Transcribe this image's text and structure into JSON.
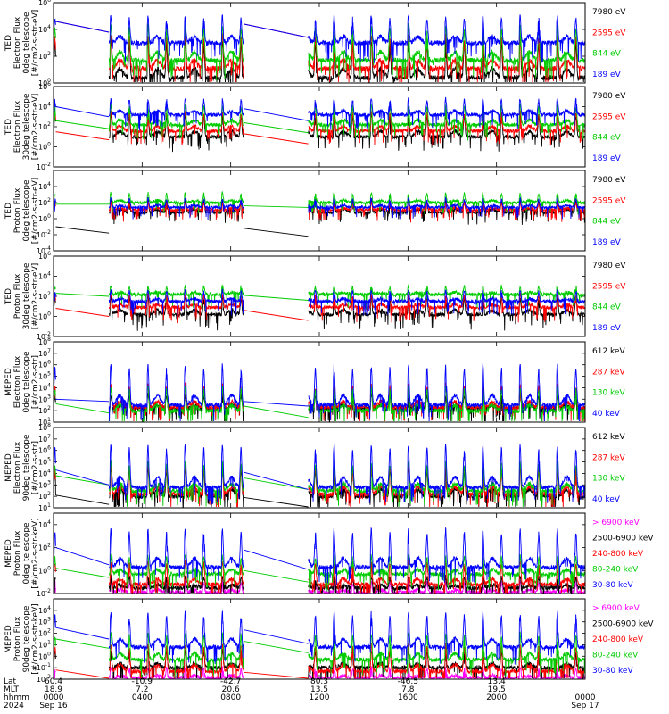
{
  "chart_data": [
    {
      "type": "line",
      "ylabel": [
        "TED",
        "Electron Flux",
        "0deg telescope",
        "[#/cm2-s-str-eV]"
      ],
      "yscale": "log",
      "ylim_exp": [
        0,
        6
      ],
      "ytick_exps": [
        0,
        2,
        4,
        6
      ],
      "ytick_labels": [
        "10^0",
        "10^2",
        "10^4",
        "10^6"
      ],
      "series": [
        {
          "name": "7980 eV",
          "color": "#000000",
          "base_exp": 0.4,
          "peak_exp": 3.2
        },
        {
          "name": "2595 eV",
          "color": "#ff0000",
          "base_exp": 1.1,
          "peak_exp": 3.6
        },
        {
          "name": "844 eV",
          "color": "#00cc00",
          "base_exp": 1.7,
          "peak_exp": 4.3
        },
        {
          "name": "189 eV",
          "color": "#0000ff",
          "base_exp": 3.0,
          "peak_exp": 5.0
        }
      ],
      "gap_line_start_exp": {
        "189 eV": 4.6,
        "2595 eV": 4.6
      },
      "gap_mid_exp": {
        "189 eV": 3.8
      }
    },
    {
      "type": "line",
      "ylabel": [
        "TED",
        "Electron Flux",
        "30deg telescope",
        "[#/cm2-s-str-eV]"
      ],
      "yscale": "log",
      "ylim_exp": [
        -2,
        6
      ],
      "ytick_exps": [
        -2,
        0,
        2,
        4,
        6
      ],
      "ytick_labels": [
        "10^-2",
        "10^0",
        "10^2",
        "10^4",
        "10^6"
      ],
      "series": [
        {
          "name": "7980 eV",
          "color": "#000000",
          "base_exp": 1.0,
          "peak_exp": 3.3
        },
        {
          "name": "2595 eV",
          "color": "#ff0000",
          "base_exp": 1.6,
          "peak_exp": 3.5
        },
        {
          "name": "844 eV",
          "color": "#00cc00",
          "base_exp": 2.2,
          "peak_exp": 4.2
        },
        {
          "name": "189 eV",
          "color": "#0000ff",
          "base_exp": 3.2,
          "peak_exp": 4.8
        }
      ],
      "gap_line_start_exp": {
        "189 eV": 4.0,
        "844 eV": 2.6,
        "2595 eV": 1.5
      },
      "gap_mid_exp": {
        "189 eV": 3.0
      }
    },
    {
      "type": "line",
      "ylabel": [
        "TED",
        "Proton Flux",
        "0deg telescope",
        "[#/cm2-s-str-eV]"
      ],
      "yscale": "log",
      "ylim_exp": [
        -4,
        6
      ],
      "ytick_exps": [
        -4,
        -2,
        0,
        2,
        4
      ],
      "ytick_labels": [
        "10^-4",
        "10^-2",
        "10^0",
        "10^2",
        "10^4"
      ],
      "series": [
        {
          "name": "7980 eV",
          "color": "#000000",
          "base_exp": 0.8,
          "peak_exp": 2.3
        },
        {
          "name": "2595 eV",
          "color": "#ff0000",
          "base_exp": 1.1,
          "peak_exp": 2.0
        },
        {
          "name": "844 eV",
          "color": "#00cc00",
          "base_exp": 2.0,
          "peak_exp": 3.2
        },
        {
          "name": "189 eV",
          "color": "#0000ff",
          "base_exp": 1.4,
          "peak_exp": 2.5
        }
      ],
      "gap_line_start_exp": {
        "844 eV": 1.8,
        "7980 eV": -1.0
      },
      "gap_mid_exp": {
        "844 eV": 1.8
      }
    },
    {
      "type": "line",
      "ylabel": [
        "TED",
        "Proton Flux",
        "30deg telescope",
        "[#/cm2-s-str-eV]"
      ],
      "yscale": "log",
      "ylim_exp": [
        -2,
        6
      ],
      "ytick_exps": [
        -2,
        0,
        2,
        4,
        6
      ],
      "ytick_labels": [
        "10^-2",
        "10^0",
        "10^2",
        "10^4",
        "10^6"
      ],
      "series": [
        {
          "name": "7980 eV",
          "color": "#000000",
          "base_exp": 0.2,
          "peak_exp": 2.0
        },
        {
          "name": "2595 eV",
          "color": "#ff0000",
          "base_exp": 0.9,
          "peak_exp": 2.2
        },
        {
          "name": "844 eV",
          "color": "#00cc00",
          "base_exp": 2.2,
          "peak_exp": 3.0
        },
        {
          "name": "189 eV",
          "color": "#0000ff",
          "base_exp": 1.5,
          "peak_exp": 2.6
        }
      ],
      "gap_line_start_exp": {
        "844 eV": 2.3,
        "2595 eV": 0.8
      },
      "gap_mid_exp": {
        "844 eV": 2.0
      }
    },
    {
      "type": "line",
      "ylabel": [
        "MEPED",
        "Electron Flux",
        "0deg telescope",
        "[#/cm2-s-str]"
      ],
      "yscale": "log",
      "ylim_exp": [
        1,
        8
      ],
      "ytick_exps": [
        1,
        2,
        3,
        4,
        5,
        6,
        7,
        8
      ],
      "ytick_labels": [
        "10^1",
        "10^2",
        "10^3",
        "10^4",
        "10^5",
        "10^6",
        "10^7",
        "10^8"
      ],
      "series": [
        {
          "name": "612 keV",
          "color": "#000000",
          "base_exp": 2.2,
          "peak_exp": 3.4
        },
        {
          "name": "287 keV",
          "color": "#ff0000",
          "base_exp": 2.3,
          "peak_exp": 4.3
        },
        {
          "name": "130 keV",
          "color": "#00cc00",
          "base_exp": 2.0,
          "peak_exp": 4.0
        },
        {
          "name": "40 keV",
          "color": "#0000ff",
          "base_exp": 2.5,
          "peak_exp": 6.0
        }
      ],
      "gap_line_start_exp": {
        "40 keV": 3.0,
        "130 keV": 2.6
      },
      "gap_mid_exp": {
        "40 keV": 2.8
      }
    },
    {
      "type": "line",
      "ylabel": [
        "MEPED",
        "Electron Flux",
        "90deg telescope",
        "[#/cm2-s-str]"
      ],
      "yscale": "log",
      "ylim_exp": [
        1,
        8
      ],
      "ytick_exps": [
        1,
        2,
        3,
        4,
        5,
        6,
        7,
        8
      ],
      "ytick_labels": [
        "10^1",
        "10^2",
        "10^3",
        "10^4",
        "10^5",
        "10^6",
        "10^7",
        "10^8"
      ],
      "series": [
        {
          "name": "612 keV",
          "color": "#000000",
          "base_exp": 2.0,
          "peak_exp": 4.5
        },
        {
          "name": "287 keV",
          "color": "#ff0000",
          "base_exp": 2.2,
          "peak_exp": 4.8
        },
        {
          "name": "130 keV",
          "color": "#00cc00",
          "base_exp": 2.5,
          "peak_exp": 5.0
        },
        {
          "name": "40 keV",
          "color": "#0000ff",
          "base_exp": 2.8,
          "peak_exp": 6.5
        }
      ],
      "gap_line_start_exp": {
        "40 keV": 4.3,
        "130 keV": 3.8,
        "612 keV": 2.1
      },
      "gap_mid_exp": {
        "40 keV": 3.0
      }
    },
    {
      "type": "line",
      "ylabel": [
        "MEPED",
        "Proton Flux",
        "0deg telescope",
        "[#/cm2-s-str-keV]"
      ],
      "yscale": "log",
      "ylim_exp": [
        -2,
        5
      ],
      "ytick_exps": [
        -2,
        0,
        2,
        4
      ],
      "ytick_labels": [
        "10^-2",
        "10^0",
        "10^2",
        "10^4"
      ],
      "series": [
        {
          "name": "> 6900 keV",
          "color": "#ff00ff",
          "base_exp": -1.9,
          "peak_exp": -1.0
        },
        {
          "name": "2500-6900 keV",
          "color": "#000000",
          "base_exp": -1.5,
          "peak_exp": -0.5
        },
        {
          "name": "240-800 keV",
          "color": "#ff0000",
          "base_exp": -1.2,
          "peak_exp": 0.8
        },
        {
          "name": "80-240 keV",
          "color": "#00cc00",
          "base_exp": -0.3,
          "peak_exp": 1.3
        },
        {
          "name": "30-80 keV",
          "color": "#0000ff",
          "base_exp": 0.3,
          "peak_exp": 3.6
        }
      ],
      "gap_line_start_exp": {
        "30-80 keV": 2.0,
        "80-240 keV": 0.2
      },
      "gap_mid_exp": {
        "30-80 keV": 0.5
      }
    },
    {
      "type": "line",
      "ylabel": [
        "MEPED",
        "Proton Flux",
        "90deg telescope",
        "[#/cm2-s-str-keV]"
      ],
      "yscale": "log",
      "ylim_exp": [
        -2,
        5
      ],
      "ytick_exps": [
        -2,
        -1,
        0,
        1,
        2,
        3,
        4
      ],
      "ytick_labels": [
        "10^-2",
        "10^-1",
        "10^0",
        "10^1",
        "10^2",
        "10^3",
        "10^4"
      ],
      "series": [
        {
          "name": "> 6900 keV",
          "color": "#ff00ff",
          "base_exp": -1.9,
          "peak_exp": -1.0
        },
        {
          "name": "2500-6900 keV",
          "color": "#000000",
          "base_exp": -1.0,
          "peak_exp": 0.5
        },
        {
          "name": "240-800 keV",
          "color": "#ff0000",
          "base_exp": -1.3,
          "peak_exp": 1.0
        },
        {
          "name": "80-240 keV",
          "color": "#00cc00",
          "base_exp": -0.3,
          "peak_exp": 2.0
        },
        {
          "name": "30-80 keV",
          "color": "#0000ff",
          "base_exp": 0.8,
          "peak_exp": 3.8
        }
      ],
      "gap_line_start_exp": {
        "30-80 keV": 2.5,
        "80-240 keV": 1.5,
        "240-800 keV": -1.2
      },
      "gap_mid_exp": {
        "30-80 keV": 1.5
      }
    }
  ],
  "xaxis": {
    "row_labels": [
      "Lat",
      "MLT",
      "hhmm",
      "2024"
    ],
    "ticks": [
      {
        "hour": 0,
        "lat": "60.4",
        "mlt": "18.9",
        "hhmm": "0000",
        "date": "Sep 16"
      },
      {
        "hour": 4,
        "lat": "-10.9",
        "mlt": "7.2",
        "hhmm": "0400",
        "date": ""
      },
      {
        "hour": 8,
        "lat": "-42.7",
        "mlt": "20.6",
        "hhmm": "0800",
        "date": ""
      },
      {
        "hour": 12,
        "lat": "80.3",
        "mlt": "13.5",
        "hhmm": "1200",
        "date": ""
      },
      {
        "hour": 16,
        "lat": "-46.5",
        "mlt": "7.8",
        "hhmm": "1600",
        "date": ""
      },
      {
        "hour": 20,
        "lat": "13.4",
        "mlt": "19.5",
        "hhmm": "2000",
        "date": ""
      },
      {
        "hour": 24,
        "lat": "",
        "mlt": "",
        "hhmm": "0000",
        "date": "Sep 17"
      }
    ],
    "xlim_hours": [
      0,
      24
    ],
    "data_gaps_hours": [
      [
        0.1,
        2.5
      ],
      [
        8.6,
        11.5
      ]
    ],
    "orbit_period_hours": 1.68,
    "first_pass_hour": 2.55
  }
}
